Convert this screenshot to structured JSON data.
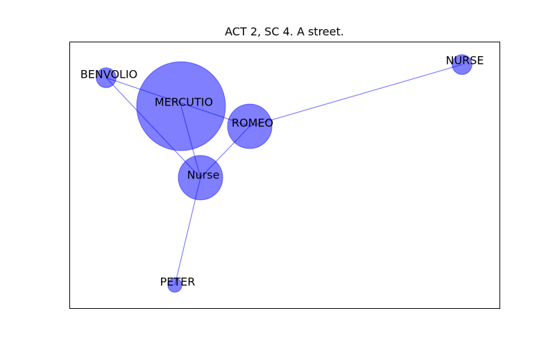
{
  "chart_data": {
    "type": "network",
    "title": "ACT 2, SC 4. A street.",
    "node_color": "#0000ff",
    "edge_color": "#0000ff",
    "nodes": [
      {
        "id": "BENVOLIO",
        "label": "BENVOLIO",
        "weight": 1
      },
      {
        "id": "MERCUTIO",
        "label": "MERCUTIO",
        "weight": 20
      },
      {
        "id": "ROMEO",
        "label": "ROMEO",
        "weight": 5
      },
      {
        "id": "Nurse",
        "label": "Nurse",
        "weight": 5
      },
      {
        "id": "NURSE",
        "label": "NURSE",
        "weight": 1
      },
      {
        "id": "PETER",
        "label": "PETER",
        "weight": 0.5
      }
    ],
    "edges": [
      {
        "source": "BENVOLIO",
        "target": "ROMEO"
      },
      {
        "source": "BENVOLIO",
        "target": "Nurse"
      },
      {
        "source": "MERCUTIO",
        "target": "Nurse"
      },
      {
        "source": "ROMEO",
        "target": "NURSE"
      },
      {
        "source": "ROMEO",
        "target": "Nurse"
      },
      {
        "source": "Nurse",
        "target": "PETER"
      }
    ]
  }
}
